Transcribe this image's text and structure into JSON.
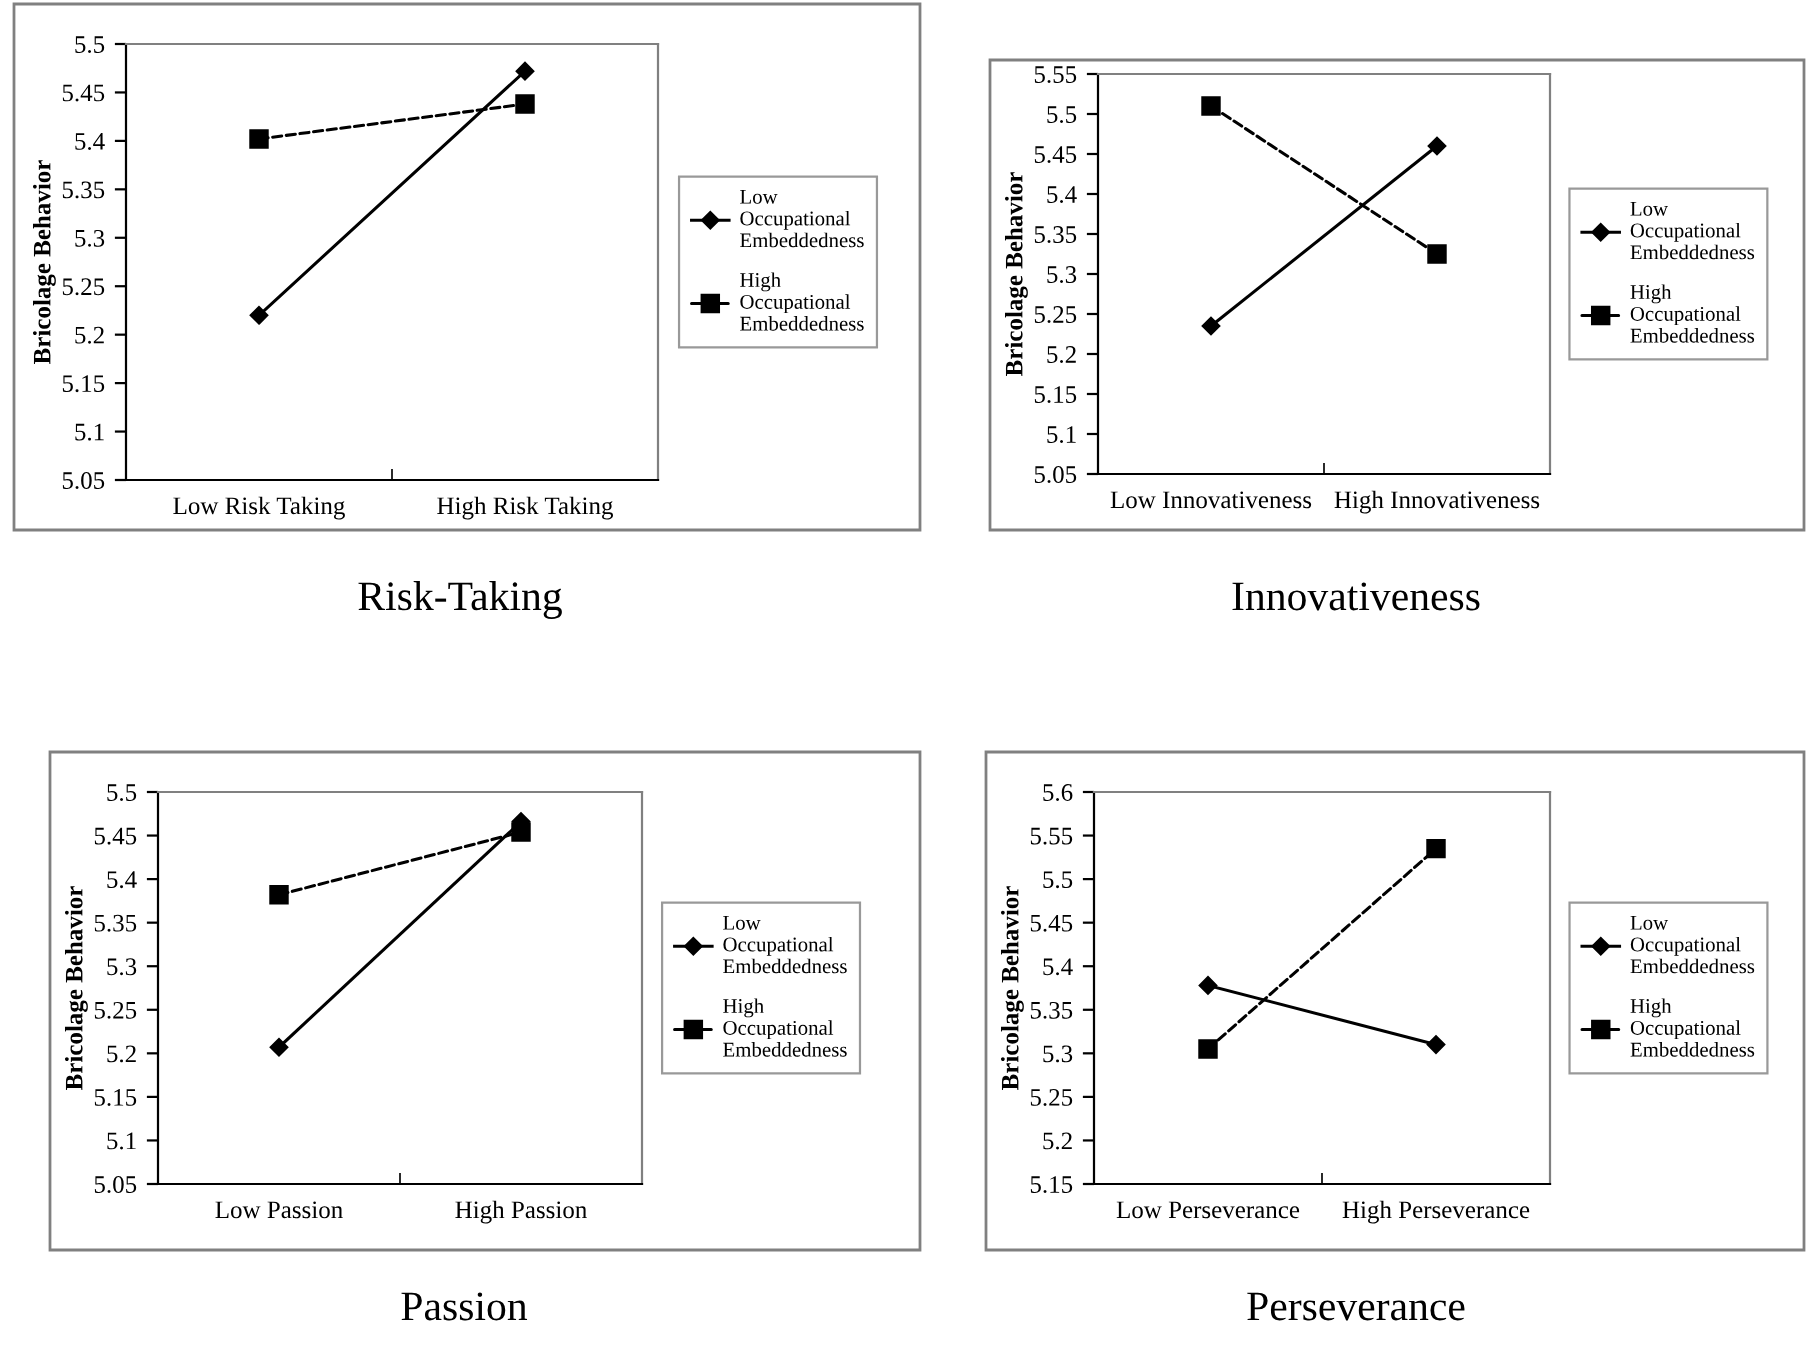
{
  "chart_data": [
    {
      "type": "line",
      "title": "Risk-Taking",
      "ylabel": "Bricolage Behavior",
      "categories": [
        "Low Risk Taking",
        "High Risk Taking"
      ],
      "ylim": [
        5.05,
        5.5
      ],
      "yticks": [
        5.05,
        5.1,
        5.15,
        5.2,
        5.25,
        5.3,
        5.35,
        5.4,
        5.45,
        5.5
      ],
      "legend": "right",
      "grid": false,
      "series": [
        {
          "name": "Low Occupational Embeddedness",
          "color": "#000000",
          "marker": "diamond",
          "line_style": "solid",
          "values": [
            5.22,
            5.472
          ]
        },
        {
          "name": "High Occupational Embeddedness",
          "color": "#000000",
          "marker": "square",
          "line_style": "dashed",
          "values": [
            5.402,
            5.438
          ]
        }
      ]
    },
    {
      "type": "line",
      "title": "Innovativeness",
      "ylabel": "Bricolage Behavior",
      "categories": [
        "Low Innovativeness",
        "High Innovativeness"
      ],
      "ylim": [
        5.05,
        5.55
      ],
      "yticks": [
        5.05,
        5.1,
        5.15,
        5.2,
        5.25,
        5.3,
        5.35,
        5.4,
        5.45,
        5.5,
        5.55
      ],
      "legend": "right",
      "grid": false,
      "series": [
        {
          "name": "Low Occupational Embeddedness",
          "color": "#000000",
          "marker": "diamond",
          "line_style": "solid",
          "values": [
            5.235,
            5.46
          ]
        },
        {
          "name": "High Occupational Embeddedness",
          "color": "#000000",
          "marker": "square",
          "line_style": "dashed",
          "values": [
            5.51,
            5.325
          ]
        }
      ]
    },
    {
      "type": "line",
      "title": "Passion",
      "ylabel": "Bricolage Behavior",
      "categories": [
        "Low Passion",
        "High Passion"
      ],
      "ylim": [
        5.05,
        5.5
      ],
      "yticks": [
        5.05,
        5.1,
        5.15,
        5.2,
        5.25,
        5.3,
        5.35,
        5.4,
        5.45,
        5.5
      ],
      "legend": "right",
      "grid": false,
      "series": [
        {
          "name": "Low Occupational Embeddedness",
          "color": "#000000",
          "marker": "diamond",
          "line_style": "solid",
          "values": [
            5.207,
            5.466
          ]
        },
        {
          "name": "High Occupational Embeddedness",
          "color": "#000000",
          "marker": "square",
          "line_style": "dashed",
          "values": [
            5.382,
            5.454
          ]
        }
      ]
    },
    {
      "type": "line",
      "title": "Perseverance",
      "ylabel": "Bricolage Behavior",
      "categories": [
        "Low Perseverance",
        "High Perseverance"
      ],
      "ylim": [
        5.15,
        5.6
      ],
      "yticks": [
        5.15,
        5.2,
        5.25,
        5.3,
        5.35,
        5.4,
        5.45,
        5.5,
        5.55,
        5.6
      ],
      "legend": "right",
      "grid": false,
      "series": [
        {
          "name": "Low Occupational Embeddedness",
          "color": "#000000",
          "marker": "diamond",
          "line_style": "solid",
          "values": [
            5.378,
            5.31
          ]
        },
        {
          "name": "High Occupational Embeddedness",
          "color": "#000000",
          "marker": "square",
          "line_style": "dashed",
          "values": [
            5.305,
            5.535
          ]
        }
      ]
    }
  ]
}
